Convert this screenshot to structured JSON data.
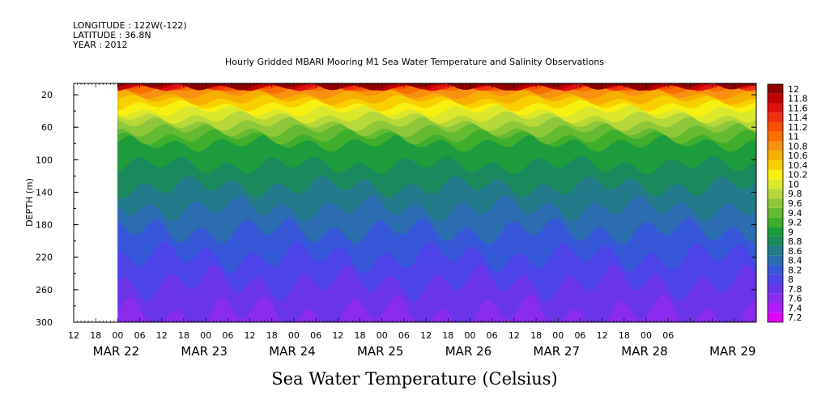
{
  "header": {
    "longitude": "LONGITUDE : 122W(-122)",
    "latitude": "LATITUDE : 36.8N",
    "year": "YEAR : 2012"
  },
  "chart_data": {
    "type": "heatmap",
    "title": "Hourly Gridded MBARI Mooring M1 Sea Water Temperature and Salinity Observations",
    "xlabel": "Sea Water Temperature (Celsius)",
    "ylabel": "DEPTH (m)",
    "x_time_range_hours": [
      -12,
      174
    ],
    "x_data_start_hours": 0,
    "x_hour_ticks": [
      "12",
      "18",
      "00",
      "06",
      "12",
      "18",
      "00",
      "06",
      "12",
      "18",
      "00",
      "06",
      "12",
      "18",
      "00",
      "06",
      "12",
      "18",
      "00",
      "06",
      "12",
      "18",
      "00",
      "06",
      "12",
      "18",
      "00",
      "06"
    ],
    "x_day_labels": [
      "MAR 22",
      "MAR 23",
      "MAR 24",
      "MAR 25",
      "MAR 26",
      "MAR 27",
      "MAR 28",
      "MAR 29"
    ],
    "y_ticks": [
      20,
      60,
      100,
      140,
      180,
      220,
      260,
      300
    ],
    "ylim": [
      300,
      6
    ],
    "colorbar_levels": [
      7.2,
      7.4,
      7.6,
      7.8,
      8,
      8.2,
      8.4,
      8.6,
      8.8,
      9,
      9.2,
      9.4,
      9.6,
      9.8,
      10,
      10.2,
      10.4,
      10.6,
      10.8,
      11,
      11.2,
      11.4,
      11.6,
      11.8,
      12
    ],
    "colorbar_labels": [
      "7.2",
      "7.4",
      "7.6",
      "7.8",
      "8",
      "8.2",
      "8.4",
      "8.6",
      "8.8",
      "9",
      "9.2",
      "9.4",
      "9.6",
      "9.8",
      "10",
      "10.2",
      "10.4",
      "10.6",
      "10.8",
      "11",
      "11.2",
      "11.4",
      "11.6",
      "11.8",
      "12"
    ],
    "colorbar_colors": [
      "#e000f8",
      "#b01cf8",
      "#8a2cf0",
      "#6a34e8",
      "#4c44e8",
      "#3658d8",
      "#2c6cb0",
      "#227a8a",
      "#1a8a5e",
      "#1c9c3c",
      "#3eae2c",
      "#64ba30",
      "#8ec83a",
      "#b6d838",
      "#dce82c",
      "#f8f010",
      "#f8d000",
      "#f8b000",
      "#f89010",
      "#f87000",
      "#f85000",
      "#f03010",
      "#e01010",
      "#c00000",
      "#900000"
    ],
    "depth_profile": [
      {
        "depth": 10,
        "temperature": 10.9
      },
      {
        "depth": 20,
        "temperature": 10.6
      },
      {
        "depth": 40,
        "temperature": 10.0
      },
      {
        "depth": 60,
        "temperature": 9.5
      },
      {
        "depth": 80,
        "temperature": 9.0
      },
      {
        "depth": 100,
        "temperature": 8.85
      },
      {
        "depth": 140,
        "temperature": 8.55
      },
      {
        "depth": 180,
        "temperature": 8.25
      },
      {
        "depth": 220,
        "temperature": 8.0
      },
      {
        "depth": 260,
        "temperature": 7.75
      },
      {
        "depth": 300,
        "temperature": 7.55
      }
    ]
  }
}
